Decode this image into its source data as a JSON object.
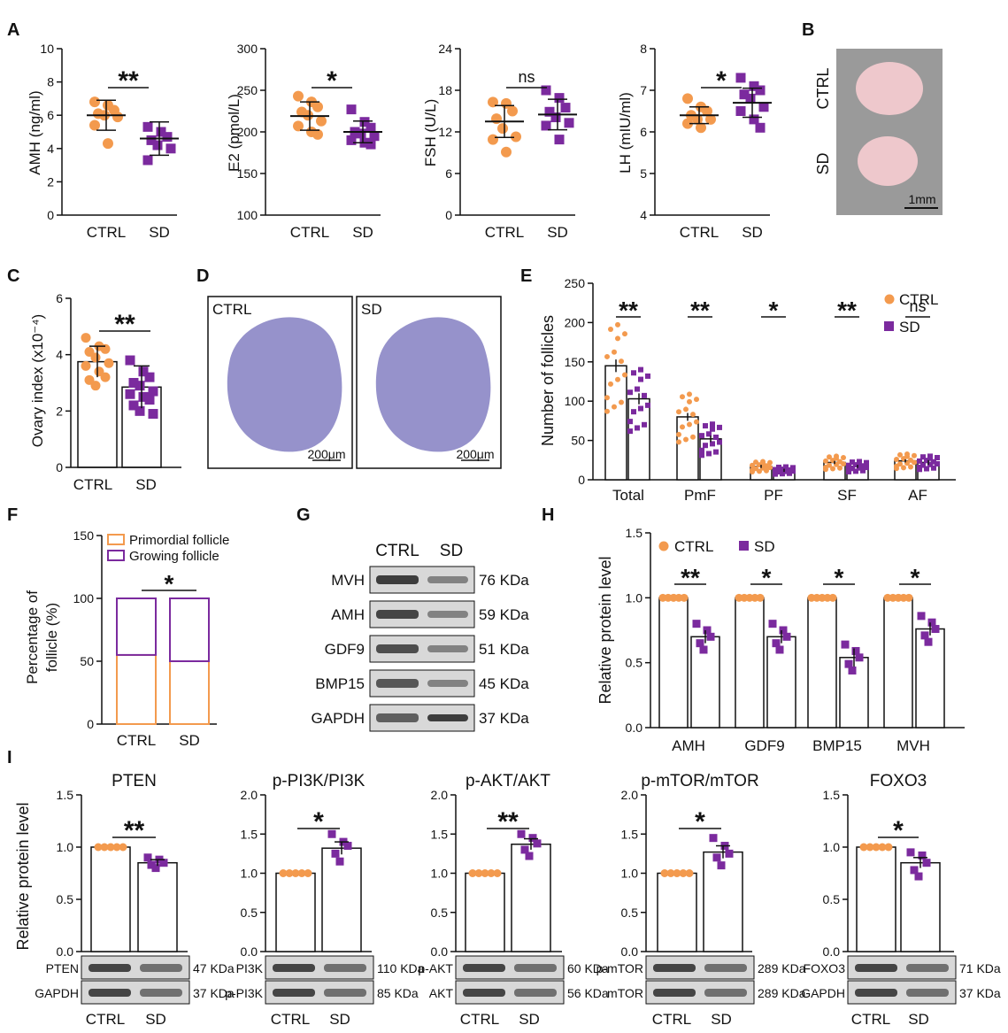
{
  "colors": {
    "ctrl": "#F39A4E",
    "sd": "#7B2A9E",
    "axis": "#111111",
    "blot_bg": "#d8d8d8",
    "band": "#2c2c2c",
    "stain": "#6a64b5",
    "photo_bg": "#9a9a9a",
    "organ": "#eec8cc"
  },
  "panel_letters": [
    "A",
    "B",
    "C",
    "D",
    "E",
    "F",
    "G",
    "H",
    "I"
  ],
  "chart_data": [
    {
      "id": "A1",
      "type": "scatter",
      "ylabel": "AMH (ng/ml)",
      "ylim": [
        0,
        10
      ],
      "yticks": [
        0,
        2,
        4,
        6,
        8,
        10
      ],
      "categories": [
        "CTRL",
        "SD"
      ],
      "sig": "**",
      "series": [
        {
          "name": "CTRL",
          "mean": 6.0,
          "sd": 0.9,
          "points": [
            6.8,
            6.6,
            6.3,
            6.1,
            6.0,
            5.9,
            5.4,
            4.3
          ]
        },
        {
          "name": "SD",
          "mean": 4.6,
          "sd": 1.0,
          "points": [
            5.3,
            5.0,
            4.7,
            4.5,
            4.2,
            4.0,
            3.3
          ]
        }
      ]
    },
    {
      "id": "A2",
      "type": "scatter",
      "ylabel": "E2 (pmol/L)",
      "ylim": [
        100,
        300
      ],
      "yticks": [
        100,
        150,
        200,
        250,
        300
      ],
      "categories": [
        "CTRL",
        "SD"
      ],
      "sig": "*",
      "series": [
        {
          "name": "CTRL",
          "mean": 219,
          "sd": 17,
          "points": [
            243,
            236,
            230,
            224,
            220,
            213,
            207,
            200,
            197
          ]
        },
        {
          "name": "SD",
          "mean": 200,
          "sd": 13,
          "points": [
            227,
            212,
            205,
            200,
            198,
            195,
            190,
            187,
            185
          ]
        }
      ]
    },
    {
      "id": "A3",
      "type": "scatter",
      "ylabel": "FSH (U/L)",
      "ylim": [
        0,
        24
      ],
      "yticks": [
        0,
        6,
        12,
        18,
        24
      ],
      "categories": [
        "CTRL",
        "SD"
      ],
      "sig": "ns",
      "series": [
        {
          "name": "CTRL",
          "mean": 13.5,
          "sd": 2.3,
          "points": [
            16.3,
            16.1,
            15.0,
            13.9,
            12.5,
            11.3,
            10.9,
            9.1
          ]
        },
        {
          "name": "SD",
          "mean": 14.5,
          "sd": 2.2,
          "points": [
            18.0,
            16.9,
            15.5,
            14.9,
            14.1,
            13.3,
            12.9,
            10.9
          ]
        }
      ]
    },
    {
      "id": "A4",
      "type": "scatter",
      "ylabel": "LH (mIU/ml)",
      "ylim": [
        4,
        8
      ],
      "yticks": [
        4,
        5,
        6,
        7,
        8
      ],
      "categories": [
        "CTRL",
        "SD"
      ],
      "sig": "*",
      "series": [
        {
          "name": "CTRL",
          "mean": 6.4,
          "sd": 0.2,
          "points": [
            6.8,
            6.6,
            6.5,
            6.4,
            6.3,
            6.3,
            6.2,
            6.1
          ]
        },
        {
          "name": "SD",
          "mean": 6.7,
          "sd": 0.35,
          "points": [
            7.3,
            7.1,
            7.0,
            6.9,
            6.8,
            6.6,
            6.5,
            6.3,
            6.1
          ]
        }
      ]
    },
    {
      "id": "C",
      "type": "bar",
      "ylabel": "Ovary index (x10⁻⁴)",
      "ylim": [
        0,
        6
      ],
      "yticks": [
        0,
        2,
        4,
        6
      ],
      "categories": [
        "CTRL",
        "SD"
      ],
      "sig": "**",
      "series": [
        {
          "name": "CTRL",
          "mean": 3.75,
          "err": 0.55,
          "points": [
            4.6,
            4.3,
            4.2,
            4.1,
            3.9,
            3.7,
            3.6,
            3.4,
            3.2,
            3.1,
            2.9
          ]
        },
        {
          "name": "SD",
          "mean": 2.85,
          "err": 0.75,
          "points": [
            3.8,
            3.4,
            3.2,
            3.0,
            2.9,
            2.7,
            2.6,
            2.5,
            2.4,
            2.2,
            2.0,
            1.9
          ]
        }
      ]
    },
    {
      "id": "E",
      "type": "bar",
      "ylabel": "Number of follicles",
      "ylim": [
        0,
        250
      ],
      "yticks": [
        0,
        50,
        100,
        150,
        200,
        250
      ],
      "categories": [
        "Total",
        "PmF",
        "PF",
        "SF",
        "AF"
      ],
      "sig": [
        "**",
        "**",
        "*",
        "**",
        "ns"
      ],
      "legend": [
        "CTRL",
        "SD"
      ],
      "series": [
        {
          "name": "CTRL",
          "values": [
            145,
            80,
            17,
            22,
            24
          ],
          "err": [
            8,
            5,
            2,
            2,
            2
          ]
        },
        {
          "name": "SD",
          "values": [
            103,
            52,
            12,
            17,
            22
          ],
          "err": [
            7,
            4,
            2,
            2,
            3
          ]
        }
      ]
    },
    {
      "id": "F",
      "type": "bar",
      "ylabel": "Percentage of follicle (%)",
      "ylim": [
        0,
        150
      ],
      "yticks": [
        0,
        50,
        100,
        150
      ],
      "categories": [
        "CTRL",
        "SD"
      ],
      "sig": "*",
      "legend": [
        "Primordial follicle",
        "Growing follicle"
      ],
      "series": [
        {
          "name": "Primordial follicle",
          "values": [
            55,
            50
          ]
        },
        {
          "name": "Growing follicle",
          "values": [
            45,
            50
          ]
        }
      ]
    },
    {
      "id": "H",
      "type": "bar",
      "ylabel": "Relative protein level",
      "ylim": [
        0,
        1.5
      ],
      "yticks": [
        0.0,
        0.5,
        1.0,
        1.5
      ],
      "categories": [
        "AMH",
        "GDF9",
        "BMP15",
        "MVH"
      ],
      "sig": [
        "**",
        "*",
        "*",
        "*"
      ],
      "legend": [
        "CTRL",
        "SD"
      ],
      "series": [
        {
          "name": "CTRL",
          "values": [
            1.0,
            1.0,
            1.0,
            1.0
          ]
        },
        {
          "name": "SD",
          "values": [
            0.7,
            0.7,
            0.54,
            0.76
          ],
          "err": [
            0.05,
            0.05,
            0.07,
            0.05
          ]
        }
      ]
    },
    {
      "id": "I1",
      "type": "bar",
      "title": "PTEN",
      "ylabel": "Relative protein level",
      "ylim": [
        0,
        1.5
      ],
      "yticks": [
        0.0,
        0.5,
        1.0,
        1.5
      ],
      "categories": [
        "CTRL",
        "SD"
      ],
      "sig": "**",
      "series": [
        {
          "name": "CTRL",
          "mean": 1.0,
          "err": 0
        },
        {
          "name": "SD",
          "mean": 0.85,
          "err": 0.03,
          "points": [
            0.9,
            0.88,
            0.85,
            0.83,
            0.8
          ]
        }
      ],
      "blots": [
        {
          "label": "PTEN",
          "size": "47 KDa"
        },
        {
          "label": "GAPDH",
          "size": "37 KDa"
        }
      ]
    },
    {
      "id": "I2",
      "type": "bar",
      "title": "p-PI3K/PI3K",
      "ylim": [
        0,
        2.0
      ],
      "yticks": [
        0.0,
        0.5,
        1.0,
        1.5,
        2.0
      ],
      "categories": [
        "CTRL",
        "SD"
      ],
      "sig": "*",
      "series": [
        {
          "name": "CTRL",
          "mean": 1.0,
          "err": 0
        },
        {
          "name": "SD",
          "mean": 1.32,
          "err": 0.08,
          "points": [
            1.5,
            1.4,
            1.35,
            1.25,
            1.15
          ]
        }
      ],
      "blots": [
        {
          "label": "PI3K",
          "size": "110 KDa"
        },
        {
          "label": "p-PI3K",
          "size": "85 KDa"
        }
      ]
    },
    {
      "id": "I3",
      "type": "bar",
      "title": "p-AKT/AKT",
      "ylim": [
        0,
        2.0
      ],
      "yticks": [
        0.0,
        0.5,
        1.0,
        1.5,
        2.0
      ],
      "categories": [
        "CTRL",
        "SD"
      ],
      "sig": "**",
      "series": [
        {
          "name": "CTRL",
          "mean": 1.0,
          "err": 0
        },
        {
          "name": "SD",
          "mean": 1.37,
          "err": 0.07,
          "points": [
            1.5,
            1.45,
            1.38,
            1.3,
            1.22
          ]
        }
      ],
      "blots": [
        {
          "label": "p-AKT",
          "size": "60 KDa"
        },
        {
          "label": "AKT",
          "size": "56 KDa"
        }
      ]
    },
    {
      "id": "I4",
      "type": "bar",
      "title": "p-mTOR/mTOR",
      "ylim": [
        0,
        2.0
      ],
      "yticks": [
        0.0,
        0.5,
        1.0,
        1.5,
        2.0
      ],
      "categories": [
        "CTRL",
        "SD"
      ],
      "sig": "*",
      "series": [
        {
          "name": "CTRL",
          "mean": 1.0,
          "err": 0
        },
        {
          "name": "SD",
          "mean": 1.27,
          "err": 0.08,
          "points": [
            1.45,
            1.35,
            1.25,
            1.2,
            1.1
          ]
        }
      ],
      "blots": [
        {
          "label": "p-mTOR",
          "size": "289 KDa"
        },
        {
          "label": "mTOR",
          "size": "289 KDa"
        }
      ]
    },
    {
      "id": "I5",
      "type": "bar",
      "title": "FOXO3",
      "ylim": [
        0,
        1.5
      ],
      "yticks": [
        0.0,
        0.5,
        1.0,
        1.5
      ],
      "categories": [
        "CTRL",
        "SD"
      ],
      "sig": "*",
      "series": [
        {
          "name": "CTRL",
          "mean": 1.0,
          "err": 0
        },
        {
          "name": "SD",
          "mean": 0.85,
          "err": 0.05,
          "points": [
            0.95,
            0.92,
            0.85,
            0.78,
            0.72
          ]
        }
      ],
      "blots": [
        {
          "label": "FOXO3",
          "size": "71 KDa"
        },
        {
          "label": "GAPDH",
          "size": "37 KDa"
        }
      ]
    }
  ],
  "photo_B": {
    "labels": [
      "CTRL",
      "SD"
    ],
    "scale": "1mm"
  },
  "histology_D": {
    "labels": [
      "CTRL",
      "SD"
    ],
    "scale": "200μm"
  },
  "western_G": {
    "lanes": [
      "CTRL",
      "SD"
    ],
    "rows": [
      {
        "protein": "MVH",
        "size": "76 KDa"
      },
      {
        "protein": "AMH",
        "size": "59 KDa"
      },
      {
        "protein": "GDF9",
        "size": "51 KDa"
      },
      {
        "protein": "BMP15",
        "size": "45 KDa"
      },
      {
        "protein": "GAPDH",
        "size": "37 KDa"
      }
    ]
  },
  "blot_lanes": [
    "CTRL",
    "SD"
  ]
}
